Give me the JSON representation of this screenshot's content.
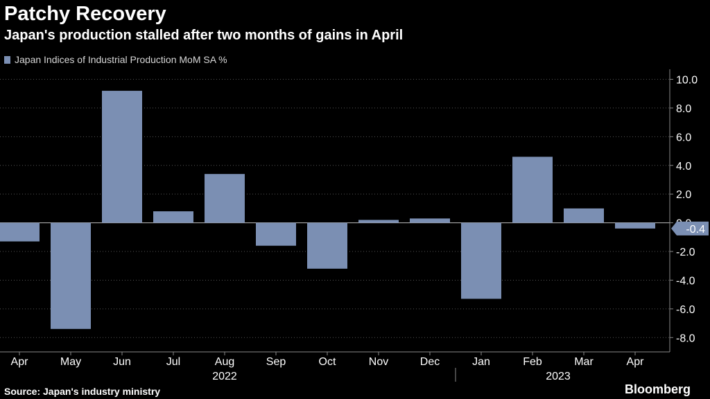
{
  "header": {
    "title": "Patchy Recovery",
    "subtitle": "Japan's production stalled after two months of gains in April"
  },
  "footer": {
    "source": "Source: Japan's industry ministry",
    "brand": "Bloomberg"
  },
  "colors": {
    "background": "#000000",
    "bar": "#7b8fb3",
    "axis": "#8a8a8a",
    "text": "#ffffff",
    "grid": "#555555"
  },
  "chart_data": {
    "type": "bar",
    "title": "Patchy Recovery",
    "subtitle": "Japan's production stalled after two months of gains in April",
    "xlabel": "",
    "ylabel": "",
    "ylim": [
      -9.0,
      10.7
    ],
    "yticks": [
      {
        "value": 10.0,
        "label": "10.0"
      },
      {
        "value": 8.0,
        "label": "8.0"
      },
      {
        "value": 6.0,
        "label": "6.0"
      },
      {
        "value": 4.0,
        "label": "4.0"
      },
      {
        "value": 2.0,
        "label": "2.0"
      },
      {
        "value": 0.0,
        "label": "0.0"
      },
      {
        "value": -2.0,
        "label": "-2.0"
      },
      {
        "value": -4.0,
        "label": "-4.0"
      },
      {
        "value": -6.0,
        "label": "-6.0"
      },
      {
        "value": -8.0,
        "label": "-8.0"
      }
    ],
    "grid": true,
    "legend": "top-left",
    "categories": [
      "Apr",
      "May",
      "Jun",
      "Jul",
      "Aug",
      "Sep",
      "Oct",
      "Nov",
      "Dec",
      "Jan",
      "Feb",
      "Mar",
      "Apr"
    ],
    "year_labels": [
      {
        "label": "2022",
        "start": 0,
        "end": 8
      },
      {
        "label": "2023",
        "start": 9,
        "end": 12
      }
    ],
    "series": [
      {
        "name": "Japan Indices of Industrial Production MoM SA %",
        "values": [
          -1.3,
          -7.4,
          9.2,
          0.8,
          3.4,
          -1.6,
          -3.2,
          0.2,
          0.3,
          -5.3,
          4.6,
          1.0,
          -0.4
        ]
      }
    ],
    "last_value_label": "-0.4"
  }
}
